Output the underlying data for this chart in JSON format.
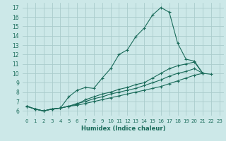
{
  "xlabel": "Humidex (Indice chaleur)",
  "ylabel": "",
  "background_color": "#cce8e8",
  "grid_color": "#aacccc",
  "line_color": "#1a6b5a",
  "xlim": [
    -0.5,
    23.5
  ],
  "ylim": [
    5.5,
    17.5
  ],
  "xticks": [
    0,
    1,
    2,
    3,
    4,
    5,
    6,
    7,
    8,
    9,
    10,
    11,
    12,
    13,
    14,
    15,
    16,
    17,
    18,
    19,
    20,
    21,
    22,
    23
  ],
  "yticks": [
    6,
    7,
    8,
    9,
    10,
    11,
    12,
    13,
    14,
    15,
    16,
    17
  ],
  "series": [
    [
      6.5,
      6.2,
      6.0,
      6.2,
      6.3,
      7.5,
      8.2,
      8.5,
      8.4,
      9.5,
      10.5,
      12.0,
      12.5,
      13.9,
      14.8,
      16.2,
      17.0,
      16.5,
      13.2,
      11.5,
      11.3,
      10.0,
      9.9,
      null
    ],
    [
      6.5,
      6.2,
      6.0,
      6.2,
      6.3,
      6.5,
      6.7,
      7.2,
      7.5,
      7.8,
      8.0,
      8.3,
      8.5,
      8.8,
      9.0,
      9.5,
      10.0,
      10.5,
      10.8,
      11.0,
      11.2,
      10.0,
      null,
      null
    ],
    [
      6.5,
      6.2,
      6.0,
      6.2,
      6.3,
      6.5,
      6.8,
      7.0,
      7.3,
      7.5,
      7.8,
      8.0,
      8.2,
      8.4,
      8.7,
      9.0,
      9.3,
      9.7,
      10.0,
      10.2,
      10.5,
      10.0,
      null,
      null
    ],
    [
      6.5,
      6.2,
      6.0,
      6.2,
      6.3,
      6.5,
      6.6,
      6.8,
      7.0,
      7.2,
      7.4,
      7.6,
      7.8,
      8.0,
      8.2,
      8.4,
      8.6,
      8.9,
      9.2,
      9.5,
      9.8,
      10.0,
      null,
      null
    ]
  ]
}
